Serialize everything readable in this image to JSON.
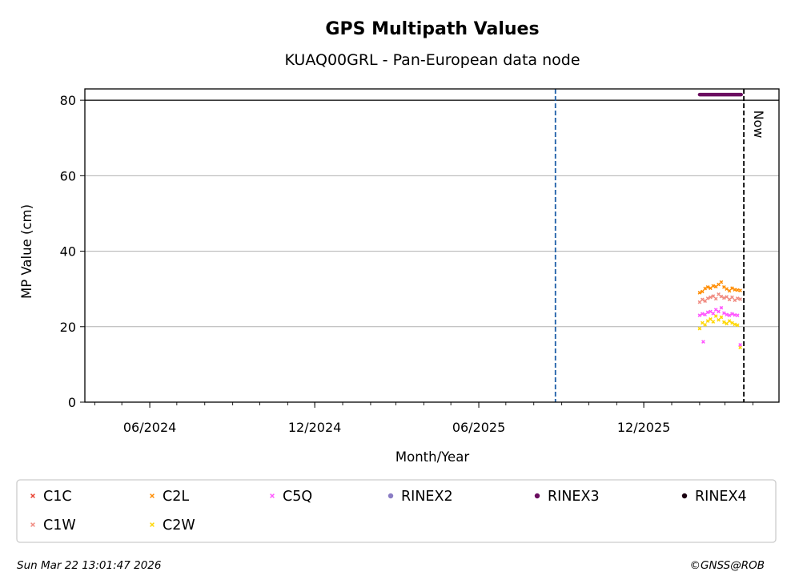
{
  "chart_data": {
    "type": "scatter",
    "title": "GPS Multipath Values",
    "subtitle": "KUAQ00GRL - Pan-European data node",
    "xlabel": "Month/Year",
    "ylabel": "MP Value (cm)",
    "ylim": [
      0,
      83
    ],
    "xlim": [
      "2024-03-21",
      "2026-04-30"
    ],
    "y_ticks": [
      0,
      20,
      40,
      60,
      80
    ],
    "x_ticks": [
      {
        "date": "2024-06-01",
        "label": "06/2024"
      },
      {
        "date": "2024-12-01",
        "label": "12/2024"
      },
      {
        "date": "2025-06-01",
        "label": "06/2025"
      },
      {
        "date": "2025-12-01",
        "label": "12/2025"
      }
    ],
    "grid": "y",
    "threshold_line": 80,
    "vertical_lines": [
      {
        "date": "2025-08-25",
        "color": "#1f5fa8",
        "style": "dashed"
      },
      {
        "date": "2026-03-22",
        "color": "#000000",
        "style": "dashed",
        "label": "Now"
      }
    ],
    "rinex_bar": {
      "series": "RINEX3",
      "start": "2026-02-01",
      "end": "2026-03-19",
      "y": 81.5
    },
    "series": [
      {
        "name": "C1C",
        "color": "#e8402f",
        "marker": "x",
        "values": []
      },
      {
        "name": "C1W",
        "color": "#f08a80",
        "marker": "x",
        "values": [
          [
            "2026-02-01",
            26.5
          ],
          [
            "2026-02-04",
            27.2
          ],
          [
            "2026-02-07",
            26.8
          ],
          [
            "2026-02-10",
            27.5
          ],
          [
            "2026-02-13",
            27.8
          ],
          [
            "2026-02-16",
            28.1
          ],
          [
            "2026-02-19",
            27.4
          ],
          [
            "2026-02-22",
            28.6
          ],
          [
            "2026-02-25",
            28.0
          ],
          [
            "2026-02-28",
            27.6
          ],
          [
            "2026-03-03",
            27.9
          ],
          [
            "2026-03-06",
            27.2
          ],
          [
            "2026-03-09",
            27.8
          ],
          [
            "2026-03-12",
            27.0
          ],
          [
            "2026-03-15",
            27.5
          ],
          [
            "2026-03-18",
            27.3
          ]
        ]
      },
      {
        "name": "C2L",
        "color": "#ff8c00",
        "marker": "x",
        "values": [
          [
            "2026-02-01",
            29.0
          ],
          [
            "2026-02-04",
            29.3
          ],
          [
            "2026-02-07",
            30.1
          ],
          [
            "2026-02-10",
            30.5
          ],
          [
            "2026-02-13",
            30.2
          ],
          [
            "2026-02-16",
            30.8
          ],
          [
            "2026-02-19",
            30.6
          ],
          [
            "2026-02-22",
            31.2
          ],
          [
            "2026-02-25",
            31.8
          ],
          [
            "2026-02-28",
            30.5
          ],
          [
            "2026-03-03",
            30.0
          ],
          [
            "2026-03-06",
            29.5
          ],
          [
            "2026-03-09",
            30.2
          ],
          [
            "2026-03-12",
            29.8
          ],
          [
            "2026-03-15",
            29.7
          ],
          [
            "2026-03-18",
            29.6
          ]
        ]
      },
      {
        "name": "C2W",
        "color": "#ffd700",
        "marker": "x",
        "values": [
          [
            "2026-02-01",
            19.5
          ],
          [
            "2026-02-04",
            21.0
          ],
          [
            "2026-02-07",
            20.5
          ],
          [
            "2026-02-10",
            21.5
          ],
          [
            "2026-02-13",
            22.0
          ],
          [
            "2026-02-16",
            21.3
          ],
          [
            "2026-02-19",
            22.8
          ],
          [
            "2026-02-22",
            21.8
          ],
          [
            "2026-02-25",
            22.5
          ],
          [
            "2026-02-28",
            21.2
          ],
          [
            "2026-03-03",
            20.8
          ],
          [
            "2026-03-06",
            21.5
          ],
          [
            "2026-03-09",
            21.0
          ],
          [
            "2026-03-12",
            20.6
          ],
          [
            "2026-03-15",
            20.4
          ],
          [
            "2026-03-18",
            14.5
          ]
        ]
      },
      {
        "name": "C5Q",
        "color": "#ff55ff",
        "marker": "x",
        "values": [
          [
            "2026-02-01",
            23.0
          ],
          [
            "2026-02-04",
            23.4
          ],
          [
            "2026-02-05",
            16.0
          ],
          [
            "2026-02-07",
            23.2
          ],
          [
            "2026-02-10",
            23.8
          ],
          [
            "2026-02-13",
            24.0
          ],
          [
            "2026-02-16",
            23.5
          ],
          [
            "2026-02-19",
            24.5
          ],
          [
            "2026-02-22",
            24.0
          ],
          [
            "2026-02-25",
            25.0
          ],
          [
            "2026-02-28",
            23.6
          ],
          [
            "2026-03-03",
            23.2
          ],
          [
            "2026-03-06",
            23.0
          ],
          [
            "2026-03-09",
            23.4
          ],
          [
            "2026-03-12",
            23.1
          ],
          [
            "2026-03-15",
            23.0
          ],
          [
            "2026-03-18",
            15.2
          ]
        ]
      },
      {
        "name": "RINEX2",
        "color": "#8a7cc4",
        "marker": "dot",
        "values": []
      },
      {
        "name": "RINEX3",
        "color": "#6a0d5f",
        "marker": "dot",
        "values": []
      },
      {
        "name": "RINEX4",
        "color": "#1a0010",
        "marker": "dot",
        "values": []
      }
    ],
    "legend": {
      "placement": "bottom",
      "entries": [
        "C1C",
        "C2L",
        "C5Q",
        "RINEX2",
        "RINEX3",
        "RINEX4",
        "C1W",
        "C2W"
      ]
    },
    "annotation_now": "Now"
  },
  "footer": {
    "timestamp": "Sun Mar 22 13:01:47 2026",
    "credit": "©GNSS@ROB"
  }
}
